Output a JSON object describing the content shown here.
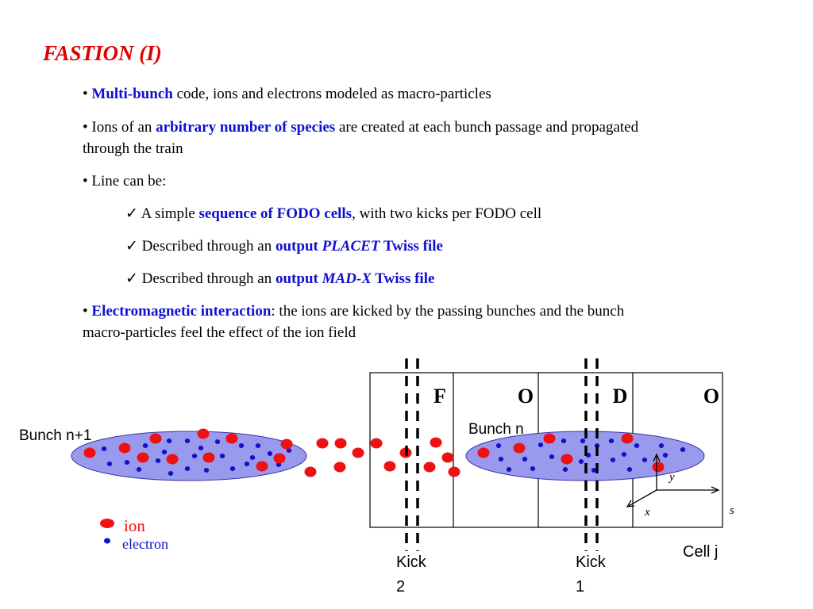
{
  "title": "FASTION (I)",
  "bullets": {
    "b1": {
      "bullet": "•",
      "hl": "Multi-bunch",
      "rest": " code, ions and electrons modeled as macro-particles"
    },
    "b2": {
      "pre": "• Ions of an ",
      "hl": "arbitrary number of species",
      "rest": " are created at each bunch passage and propagated",
      "cont": "through the train"
    },
    "b3": {
      "text": "• Line can be:"
    },
    "s1": {
      "check": "✓",
      "pre": " A simple ",
      "hl": "sequence of FODO cells",
      "rest": ", with two kicks per FODO cell"
    },
    "s2": {
      "check": "✓",
      "pre": " Described through an ",
      "hl": "output ",
      "hl_it": "PLACET",
      "hl2": " Twiss file"
    },
    "s3": {
      "check": "✓",
      "pre": " Described through an ",
      "hl": "output ",
      "hl_it": "MAD-X",
      "hl2": " Twiss file"
    },
    "b4": {
      "bullet": "•",
      "hl": "Electromagnetic interaction",
      "rest": ": the ions are kicked by the passing bunches and the bunch",
      "cont": "macro-particles feel the effect of the ion field"
    }
  },
  "diagram": {
    "cells": [
      "F",
      "O",
      "D",
      "O"
    ],
    "bunch_left_label": "Bunch n+1",
    "bunch_right_label": "Bunch n",
    "kick2": [
      "Kick",
      "2"
    ],
    "kick1": [
      "Kick",
      "1"
    ],
    "cell_label": "Cell j",
    "axes": {
      "x": "x",
      "y": "y",
      "s": "s"
    },
    "legend": {
      "ion": "ion",
      "electron": "electron"
    },
    "colors": {
      "ion": "#ee1111",
      "electron": "#1111cc",
      "bunch_fill": "#9999ee",
      "text_blue": "#1010d0"
    }
  }
}
